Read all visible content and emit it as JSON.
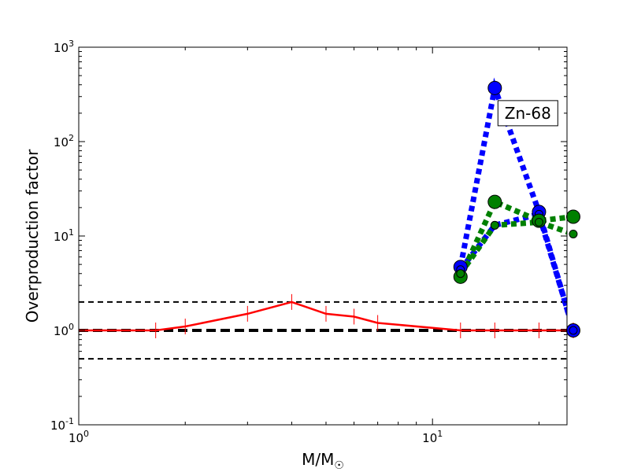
{
  "chart_data": {
    "type": "line",
    "x_scale": "log",
    "y_scale": "log",
    "xlim": [
      1,
      24
    ],
    "ylim": [
      0.1,
      1000
    ],
    "xlabel": "M/M",
    "xlabel_sub": "☉",
    "ylabel": "Overproduction factor",
    "x_ticks": [
      {
        "value": 1,
        "base": "10",
        "exp": "0"
      },
      {
        "value": 10,
        "base": "10",
        "exp": "1"
      }
    ],
    "y_ticks": [
      {
        "value": 0.1,
        "base": "10",
        "exp": "-1"
      },
      {
        "value": 1,
        "base": "10",
        "exp": "0"
      },
      {
        "value": 10,
        "base": "10",
        "exp": "1"
      },
      {
        "value": 100,
        "base": "10",
        "exp": "2"
      },
      {
        "value": 1000,
        "base": "10",
        "exp": "3"
      }
    ],
    "annotation": {
      "text": "Zn-68",
      "x": 15,
      "y": 200
    },
    "hlines": [
      {
        "y": 2,
        "style": "dashed",
        "color": "#000000",
        "width": 2
      },
      {
        "y": 1,
        "style": "dashed",
        "color": "#000000",
        "width": 4
      },
      {
        "y": 0.5,
        "style": "dashed",
        "color": "#000000",
        "width": 2
      }
    ],
    "series": [
      {
        "color": "#ff0000",
        "style": "solid",
        "marker": "vline",
        "x": [
          1,
          1.65,
          2,
          3,
          4,
          5,
          6,
          7,
          12,
          15,
          20,
          25
        ],
        "y": [
          1,
          1,
          1.1,
          1.5,
          2,
          1.5,
          1.4,
          1.2,
          1,
          1,
          1,
          1
        ]
      },
      {
        "color": "#0000ff",
        "style": "dotted",
        "marker": "circle",
        "x": [
          12,
          15,
          20,
          25
        ],
        "y": [
          4.7,
          370,
          18,
          1
        ]
      },
      {
        "color": "#0000ff",
        "style": "dotted",
        "marker": "small-circle",
        "x": [
          12,
          15,
          20,
          25
        ],
        "y": [
          4.4,
          13,
          17,
          1
        ]
      },
      {
        "color": "#008000",
        "style": "dotted",
        "marker": "circle",
        "x": [
          12,
          15,
          20,
          25
        ],
        "y": [
          3.7,
          23,
          14.5,
          16
        ]
      },
      {
        "color": "#008000",
        "style": "dotted",
        "marker": "small-circle",
        "x": [
          12,
          15,
          20,
          25
        ],
        "y": [
          4.0,
          13,
          14,
          10.5
        ]
      }
    ]
  }
}
